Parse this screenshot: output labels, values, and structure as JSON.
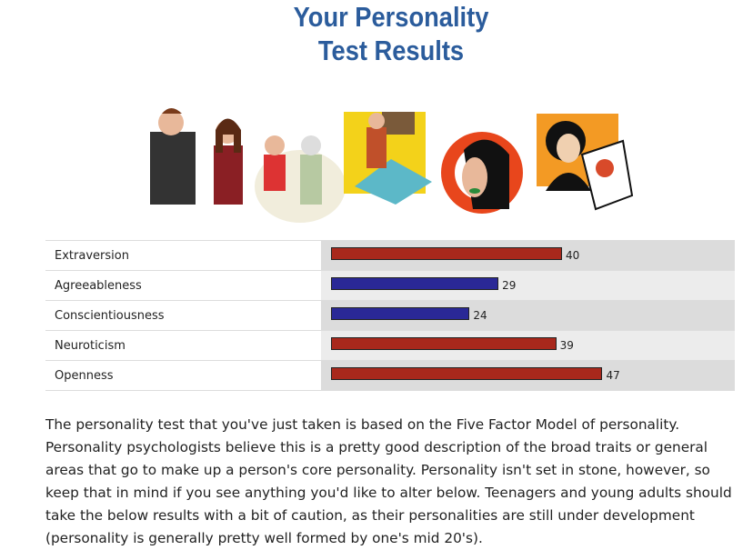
{
  "header": {
    "title": "Your Personality Test Results"
  },
  "results": {
    "rows": [
      {
        "label": "Extraversion",
        "value": 40,
        "color": "#a8281c"
      },
      {
        "label": "Agreeableness",
        "value": 29,
        "color": "#2a2896"
      },
      {
        "label": "Conscientiousness",
        "value": 24,
        "color": "#2a2896"
      },
      {
        "label": "Neuroticism",
        "value": 39,
        "color": "#a8281c"
      },
      {
        "label": "Openness",
        "value": 47,
        "color": "#a8281c"
      }
    ]
  },
  "body": {
    "paragraph": "The personality test that you've just taken is based on the Five Factor Model of personality. Personality psychologists believe this is a pretty good description of the broad traits or general areas that go to make up a person's core personality. Personality isn't set in stone, however, so keep that in mind if you see anything you'd like to alter below. Teenagers and young adults should take the below results with a bit of caution, as their personalities are still under development (personality is generally pretty well formed by one's mid 20's)."
  }
}
